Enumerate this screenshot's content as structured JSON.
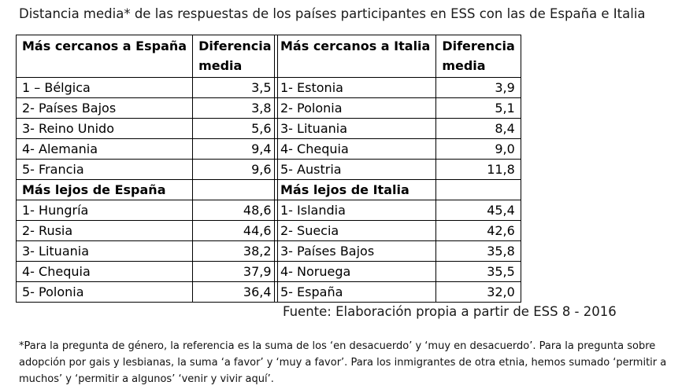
{
  "title": "Distancia media* de las respuestas de los países participantes en ESS con las de España e Italia",
  "spain": {
    "header_col1": "Más cercanos a España",
    "header_col2_line1": "Diferencia",
    "header_col2_line2": "media",
    "closest": [
      {
        "country": "1 – Bélgica",
        "value": "3,5"
      },
      {
        "country": "2- Países Bajos",
        "value": "3,8"
      },
      {
        "country": "3- Reino Unido",
        "value": "5,6"
      },
      {
        "country": "4- Alemania",
        "value": "9,4"
      },
      {
        "country": "5- Francia",
        "value": "9,6"
      }
    ],
    "farthest_label": "Más lejos de España",
    "farthest": [
      {
        "country": "1- Hungría",
        "value": "48,6"
      },
      {
        "country": "2- Rusia",
        "value": "44,6"
      },
      {
        "country": "3- Lituania",
        "value": "38,2"
      },
      {
        "country": "4- Chequia",
        "value": "37,9"
      },
      {
        "country": "5- Polonia",
        "value": "36,4"
      }
    ]
  },
  "italy": {
    "header_col1": "Más cercanos a Italia",
    "header_col2_line1": "Diferencia",
    "header_col2_line2": "media",
    "closest": [
      {
        "country": "1- Estonia",
        "value": "3,9"
      },
      {
        "country": "2- Polonia",
        "value": "5,1"
      },
      {
        "country": "3- Lituania",
        "value": "8,4"
      },
      {
        "country": "4- Chequia",
        "value": "9,0"
      },
      {
        "country": "5- Austria",
        "value": "11,8"
      }
    ],
    "farthest_label": "Más lejos de Italia",
    "farthest": [
      {
        "country": "1- Islandia",
        "value": "45,4"
      },
      {
        "country": "2- Suecia",
        "value": "42,6"
      },
      {
        "country": "3- Países Bajos",
        "value": "35,8"
      },
      {
        "country": "4- Noruega",
        "value": "35,5"
      },
      {
        "country": "5- España",
        "value": "32,0"
      }
    ]
  },
  "source": "Fuente: Elaboración propia a partir de ESS 8 - 2016",
  "footnote": "*Para la pregunta de género, la referencia es la suma de los ‘en desacuerdo’ y ‘muy en desacuerdo’. Para la pregunta sobre adopción por gais y lesbianas, la suma ‘a favor’ y ‘muy a favor’. Para los inmigrantes de otra etnia, hemos sumado ‘permitir a muchos’ y ‘permitir a algunos’ ‘venir y vivir aquí’."
}
